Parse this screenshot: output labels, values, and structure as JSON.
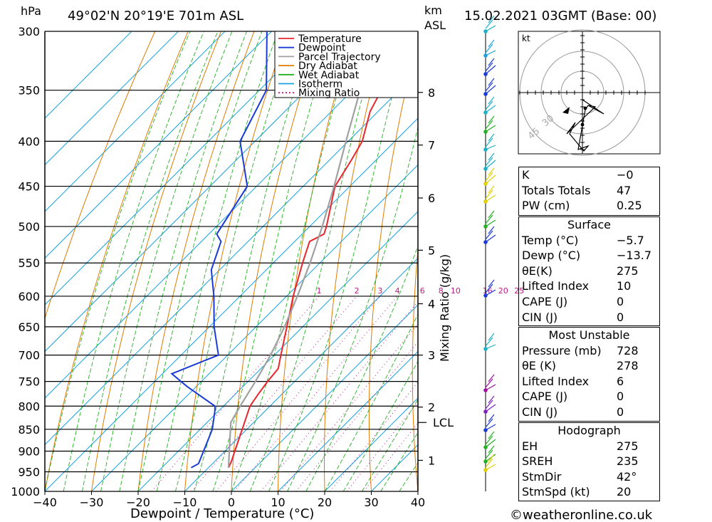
{
  "header": {
    "pressure_unit": "hPa",
    "location": "49°02'N  20°19'E  701m  ASL",
    "height_unit": "km",
    "height_unit2": "ASL",
    "datetime": "15.02.2021  03GMT  (Base: 00)"
  },
  "chart_data": {
    "type": "line",
    "subtype": "skew-T log-P sounding",
    "xlabel": "Dewpoint / Temperature (°C)",
    "ylabel": "hPa",
    "y2label": "Mixing Ratio (g/kg)",
    "x_ticks": [
      -40,
      -30,
      -20,
      -10,
      0,
      10,
      20,
      30,
      40
    ],
    "x_tick_labels": [
      "−40",
      "−30",
      "−20",
      "−10",
      "0",
      "10",
      "20",
      "30",
      "40"
    ],
    "pressure_levels": [
      300,
      350,
      400,
      450,
      500,
      550,
      600,
      650,
      700,
      750,
      800,
      850,
      900,
      950,
      1000
    ],
    "height_ticks_km": [
      {
        "km": 1,
        "p": 922
      },
      {
        "km": 2,
        "p": 802
      },
      {
        "km": 3,
        "p": 700
      },
      {
        "km": 4,
        "p": 612
      },
      {
        "km": 5,
        "p": 532
      },
      {
        "km": 6,
        "p": 464
      },
      {
        "km": 7,
        "p": 404
      },
      {
        "km": 8,
        "p": 352
      }
    ],
    "lcl": {
      "label": "LCL",
      "p": 835
    },
    "mixing_ratio_labels": [
      "1",
      "2",
      "3",
      "4",
      "6",
      "8",
      "10",
      "16",
      "20",
      "25"
    ],
    "mixing_ratio_values": [
      1,
      2,
      3,
      4,
      6,
      8,
      10,
      16,
      20,
      25
    ],
    "legend": {
      "position": "top-right",
      "entries": [
        {
          "name": "Temperature",
          "color": "#e8262b",
          "style": "solid"
        },
        {
          "name": "Dewpoint",
          "color": "#1a3bd6",
          "style": "solid"
        },
        {
          "name": "Parcel Trajectory",
          "color": "#a0a0a0",
          "style": "solid"
        },
        {
          "name": "Dry Adiabat",
          "color": "#e07b00",
          "style": "solid"
        },
        {
          "name": "Wet Adiabat",
          "color": "#23b023",
          "style": "solid"
        },
        {
          "name": "Isotherm",
          "color": "#1aa3e0",
          "style": "solid"
        },
        {
          "name": "Mixing Ratio",
          "color": "#c0188a",
          "style": "dotted"
        }
      ]
    },
    "series": [
      {
        "name": "Temperature",
        "color": "#e8262b",
        "points": [
          [
            940,
            -5.7
          ],
          [
            925,
            -6.4
          ],
          [
            900,
            -7.9
          ],
          [
            850,
            -11.0
          ],
          [
            800,
            -14.3
          ],
          [
            775,
            -15.1
          ],
          [
            750,
            -15.8
          ],
          [
            725,
            -16.3
          ],
          [
            700,
            -18.6
          ],
          [
            650,
            -23.4
          ],
          [
            600,
            -28.6
          ],
          [
            550,
            -33.7
          ],
          [
            520,
            -36.8
          ],
          [
            510,
            -35.3
          ],
          [
            500,
            -36.4
          ],
          [
            450,
            -43.2
          ],
          [
            420,
            -45.3
          ],
          [
            400,
            -47.0
          ],
          [
            370,
            -51.7
          ],
          [
            355,
            -53.3
          ],
          [
            330,
            -53.0
          ],
          [
            310,
            -53.4
          ],
          [
            305,
            -50.4
          ],
          [
            300,
            -51.2
          ]
        ]
      },
      {
        "name": "Dewpoint",
        "color": "#1a3bd6",
        "points": [
          [
            940,
            -13.7
          ],
          [
            930,
            -13.0
          ],
          [
            900,
            -14.6
          ],
          [
            850,
            -17.4
          ],
          [
            810,
            -20.8
          ],
          [
            800,
            -21.8
          ],
          [
            760,
            -32.0
          ],
          [
            735,
            -38.0
          ],
          [
            700,
            -32.0
          ],
          [
            650,
            -39.0
          ],
          [
            600,
            -45.6
          ],
          [
            560,
            -51.8
          ],
          [
            520,
            -55.8
          ],
          [
            510,
            -58.3
          ],
          [
            450,
            -62.0
          ],
          [
            400,
            -73.2
          ],
          [
            350,
            -78.5
          ],
          [
            300,
            -91.0
          ]
        ]
      },
      {
        "name": "Parcel Trajectory",
        "color": "#a0a0a0",
        "points": [
          [
            940,
            -5.7
          ],
          [
            835,
            -14.9
          ],
          [
            800,
            -16.4
          ],
          [
            750,
            -18.4
          ],
          [
            700,
            -20.8
          ],
          [
            650,
            -23.9
          ],
          [
            600,
            -27.7
          ],
          [
            550,
            -32.1
          ],
          [
            500,
            -37.3
          ],
          [
            450,
            -43.4
          ],
          [
            400,
            -50.5
          ],
          [
            350,
            -58.4
          ],
          [
            300,
            -67.5
          ]
        ]
      }
    ]
  },
  "hodograph": {
    "unit_label": "kt",
    "ring_labels": [
      "30",
      "45"
    ]
  },
  "indices": {
    "k_label": "K",
    "k_value": "−0",
    "tt_label": "Totals Totals",
    "tt_value": "47",
    "pw_label": "PW (cm)",
    "pw_value": "0.25"
  },
  "surface": {
    "title": "Surface",
    "rows": [
      {
        "label": "Temp (°C)",
        "value": "−5.7"
      },
      {
        "label": "Dewp (°C)",
        "value": "−13.7"
      },
      {
        "label": "θE(K)",
        "value": "275"
      },
      {
        "label": "Lifted Index",
        "value": "10"
      },
      {
        "label": "CAPE (J)",
        "value": "0"
      },
      {
        "label": "CIN (J)",
        "value": "0"
      }
    ]
  },
  "most_unstable": {
    "title": "Most Unstable",
    "rows": [
      {
        "label": "Pressure (mb)",
        "value": "728"
      },
      {
        "label": "θE (K)",
        "value": "278"
      },
      {
        "label": "Lifted Index",
        "value": "6"
      },
      {
        "label": "CAPE (J)",
        "value": "0"
      },
      {
        "label": "CIN (J)",
        "value": "0"
      }
    ]
  },
  "hodograph_table": {
    "title": "Hodograph",
    "rows": [
      {
        "label": "EH",
        "value": "275"
      },
      {
        "label": "SREH",
        "value": "235"
      },
      {
        "label": "StmDir",
        "value": "42°"
      },
      {
        "label": "StmSpd (kt)",
        "value": "20"
      }
    ]
  },
  "footer": {
    "copyright": "©weatheronline.co.uk"
  }
}
